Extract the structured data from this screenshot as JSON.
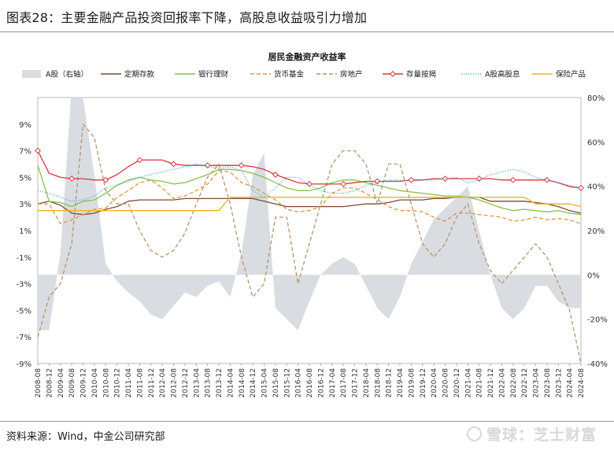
{
  "figure": {
    "title": "图表28：主要金融产品投资回报率下降，高股息收益吸引力增加",
    "source": "资料来源：Wind，中金公司研究部",
    "watermark": "雪球：芝士财富"
  },
  "chart_data": {
    "type": "line",
    "title": "居民金融资产收益率",
    "x_ticks": [
      "2008-08",
      "2008-12",
      "2009-04",
      "2009-08",
      "2009-12",
      "2010-04",
      "2010-08",
      "2010-12",
      "2011-04",
      "2011-08",
      "2011-12",
      "2012-04",
      "2012-08",
      "2012-12",
      "2013-04",
      "2013-08",
      "2013-12",
      "2014-04",
      "2014-08",
      "2014-12",
      "2015-04",
      "2015-08",
      "2015-12",
      "2016-04",
      "2016-08",
      "2016-12",
      "2017-04",
      "2017-08",
      "2017-12",
      "2018-04",
      "2018-08",
      "2018-12",
      "2019-04",
      "2019-08",
      "2019-12",
      "2020-04",
      "2020-08",
      "2020-12",
      "2021-04",
      "2021-08",
      "2021-12",
      "2022-04",
      "2022-08",
      "2022-12",
      "2023-04",
      "2023-08",
      "2023-12",
      "2024-04",
      "2024-08"
    ],
    "y_left": {
      "min": -9,
      "max": 11,
      "ticks": [
        "9%",
        "7%",
        "5%",
        "3%",
        "1%",
        "-1%",
        "-3%",
        "-5%",
        "-7%",
        "-9%"
      ],
      "tick_values": [
        9,
        7,
        5,
        3,
        1,
        -1,
        -3,
        -5,
        -7,
        -9
      ]
    },
    "y_right": {
      "min": -40,
      "max": 80,
      "ticks": [
        "80%",
        "60%",
        "40%",
        "20%",
        "0%",
        "-20%",
        "-40%"
      ],
      "tick_values": [
        80,
        60,
        40,
        20,
        0,
        -20,
        -40
      ]
    },
    "series": [
      {
        "name": "A股（右轴）",
        "kind": "area",
        "axis": "right",
        "color": "#d9dde2",
        "values": [
          -25,
          -25,
          10,
          85,
          80,
          45,
          5,
          -3,
          -8,
          -12,
          -18,
          -20,
          -14,
          -8,
          -10,
          -5,
          -3,
          -10,
          10,
          45,
          55,
          -15,
          -20,
          -25,
          -12,
          0,
          5,
          8,
          5,
          -5,
          -15,
          -20,
          -10,
          5,
          15,
          25,
          30,
          35,
          40,
          20,
          0,
          -15,
          -20,
          -15,
          -5,
          -5,
          -12,
          -15,
          -15
        ],
        "dash": ""
      },
      {
        "name": "定期存款",
        "kind": "line",
        "axis": "left",
        "color": "#7b4a36",
        "values": [
          3.0,
          3.2,
          2.9,
          2.3,
          2.2,
          2.3,
          2.6,
          2.8,
          3.2,
          3.3,
          3.3,
          3.3,
          3.3,
          3.4,
          3.4,
          3.4,
          3.4,
          3.4,
          3.4,
          3.4,
          3.2,
          3.0,
          2.8,
          2.8,
          2.8,
          2.8,
          2.8,
          2.8,
          2.9,
          3.0,
          3.0,
          3.1,
          3.3,
          3.3,
          3.3,
          3.4,
          3.4,
          3.5,
          3.5,
          3.5,
          3.2,
          3.2,
          3.2,
          3.2,
          3.1,
          3.0,
          2.8,
          2.5,
          2.3
        ],
        "dash": ""
      },
      {
        "name": "银行理财",
        "kind": "line",
        "axis": "left",
        "color": "#86c24a",
        "values": [
          5.9,
          3.2,
          3.1,
          2.8,
          3.2,
          3.3,
          3.8,
          4.4,
          4.8,
          5.0,
          4.8,
          4.7,
          4.5,
          4.6,
          4.9,
          5.2,
          5.6,
          5.6,
          5.5,
          5.3,
          5.0,
          4.6,
          4.2,
          4.0,
          4.0,
          4.2,
          4.6,
          4.8,
          4.8,
          4.6,
          4.4,
          4.2,
          4.0,
          3.9,
          3.8,
          3.7,
          3.6,
          3.6,
          3.5,
          3.3,
          3.0,
          2.7,
          2.5,
          2.6,
          2.5,
          2.4,
          2.5,
          2.3,
          2.2
        ],
        "dash": ""
      },
      {
        "name": "货币基金",
        "kind": "line",
        "axis": "left",
        "color": "#e09540",
        "values": [
          3.0,
          3.0,
          1.5,
          1.8,
          2.2,
          2.6,
          2.7,
          3.5,
          4.0,
          4.6,
          4.8,
          4.2,
          3.4,
          3.6,
          4.0,
          4.5,
          5.5,
          5.4,
          4.6,
          4.3,
          3.8,
          3.3,
          2.6,
          2.4,
          2.5,
          2.8,
          3.8,
          4.2,
          4.2,
          3.8,
          3.3,
          2.8,
          2.5,
          2.5,
          2.4,
          2.0,
          1.7,
          2.3,
          2.3,
          2.2,
          2.1,
          2.0,
          1.7,
          1.8,
          2.0,
          1.8,
          1.9,
          1.8,
          1.5
        ],
        "dash": "5,3"
      },
      {
        "name": "房地产",
        "kind": "line",
        "axis": "left",
        "color": "#b8946b",
        "values": [
          -7,
          -4,
          -3,
          0,
          9,
          8,
          4,
          3,
          3,
          1,
          -0.5,
          -1,
          -0.5,
          0.8,
          3,
          5,
          6,
          3,
          -1,
          -4,
          -3,
          2,
          2,
          -3,
          0,
          3,
          6,
          7,
          7,
          6,
          3,
          6,
          6,
          3,
          0,
          -1,
          0,
          2,
          3,
          0,
          -2,
          -3,
          -2,
          -1,
          0,
          -1,
          -3,
          -5,
          -9
        ],
        "dash": "5,3"
      },
      {
        "name": "存量按揭",
        "kind": "line",
        "axis": "left",
        "color": "#d9363e",
        "values": [
          7.0,
          5.3,
          5.0,
          4.9,
          4.9,
          4.8,
          4.8,
          5.2,
          5.8,
          6.3,
          6.3,
          6.3,
          6.0,
          5.9,
          5.9,
          5.9,
          5.9,
          5.9,
          5.9,
          5.8,
          5.6,
          5.2,
          4.9,
          4.6,
          4.5,
          4.5,
          4.5,
          4.5,
          4.6,
          4.7,
          4.7,
          4.7,
          4.7,
          4.8,
          4.8,
          4.9,
          4.9,
          4.9,
          4.9,
          4.9,
          4.9,
          4.8,
          4.8,
          4.8,
          4.8,
          4.8,
          4.6,
          4.3,
          4.2
        ],
        "dash": "",
        "markers": true
      },
      {
        "name": "A股高股息",
        "kind": "line",
        "axis": "left",
        "color": "#3b9ce0",
        "values": [
          4.0,
          3.8,
          3.5,
          3.2,
          3.3,
          3.6,
          4.2,
          4.4,
          4.7,
          5.0,
          5.2,
          5.4,
          5.6,
          5.8,
          6.0,
          5.8,
          5.7,
          5.8,
          5.5,
          4.0,
          3.5,
          4.2,
          5.0,
          5.0,
          4.4,
          4.0,
          3.8,
          3.8,
          4.0,
          4.4,
          4.6,
          4.8,
          4.8,
          4.7,
          4.8,
          4.8,
          4.9,
          5.0,
          4.6,
          4.8,
          5.2,
          5.4,
          5.6,
          5.4,
          5.0,
          4.8,
          4.6,
          4.4,
          4.2
        ],
        "dash": "1,2"
      },
      {
        "name": "保险产品",
        "kind": "line",
        "axis": "left",
        "color": "#f0b020",
        "values": [
          2.5,
          2.5,
          2.5,
          2.5,
          2.5,
          2.5,
          2.5,
          2.5,
          2.5,
          2.5,
          2.5,
          2.5,
          2.5,
          2.5,
          2.5,
          2.5,
          2.5,
          3.5,
          3.5,
          3.5,
          3.5,
          3.5,
          3.5,
          3.5,
          3.5,
          3.5,
          3.5,
          3.5,
          3.5,
          3.5,
          3.5,
          3.5,
          3.5,
          3.5,
          3.5,
          3.5,
          3.5,
          3.5,
          3.5,
          3.5,
          3.5,
          3.5,
          3.5,
          3.5,
          3.0,
          3.0,
          3.0,
          3.0,
          2.8
        ],
        "dash": ""
      }
    ]
  }
}
